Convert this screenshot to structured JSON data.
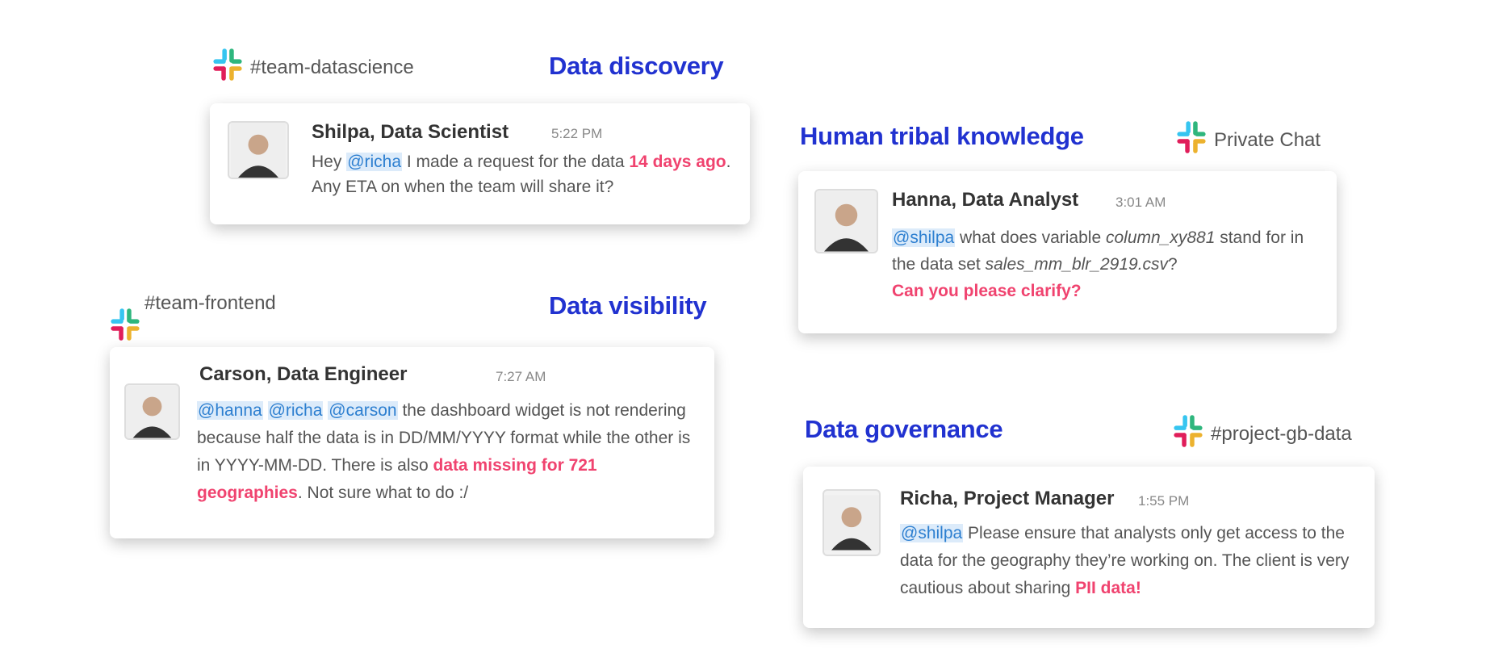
{
  "colors": {
    "topic": "#2132d0",
    "highlight": "#f0436f",
    "mention": "#2d7fd0",
    "mention_bg": "#dcebfa",
    "slack": [
      "#36c5f0",
      "#2eb67d",
      "#e01e5a",
      "#ecb22e"
    ]
  },
  "panels": [
    {
      "topic": "Data discovery",
      "channel": "#team-datascience",
      "channel_icon": "slack-logo-icon",
      "message": {
        "author": "Shilpa, Data Scientist",
        "time": "5:22 PM",
        "segments": [
          {
            "t": "Hey "
          },
          {
            "t": "@richa",
            "k": "mention"
          },
          {
            "t": " I made a request for the data "
          },
          {
            "t": "14 days ago",
            "k": "hl"
          },
          {
            "t": ". Any ETA on when the team will share it?"
          }
        ]
      }
    },
    {
      "topic": "Human tribal knowledge",
      "channel": "Private Chat",
      "channel_icon": "slack-logo-icon",
      "message": {
        "author": "Hanna, Data Analyst",
        "time": "3:01 AM",
        "segments": [
          {
            "t": "@shilpa",
            "k": "mention"
          },
          {
            "t": " what does variable "
          },
          {
            "t": "column_xy881",
            "k": "it"
          },
          {
            "t": " stand for in the data set "
          },
          {
            "t": "sales_mm_blr_2919.csv",
            "k": "it"
          },
          {
            "t": "? "
          },
          {
            "t": "Can you please clarify?",
            "k": "hlblock"
          }
        ]
      }
    },
    {
      "topic": "Data visibility",
      "channel": "#team-frontend",
      "channel_icon": "slack-logo-icon",
      "message": {
        "author": "Carson, Data Engineer",
        "time": "7:27 AM",
        "segments": [
          {
            "t": "@hanna",
            "k": "mention"
          },
          {
            "t": " "
          },
          {
            "t": "@richa",
            "k": "mention"
          },
          {
            "t": " "
          },
          {
            "t": "@carson",
            "k": "mention"
          },
          {
            "t": " the dashboard widget is not rendering because half the data is in DD/MM/YYYY format while the other is in YYYY-MM-DD. There is also "
          },
          {
            "t": "data missing for 721 geographies",
            "k": "hl"
          },
          {
            "t": ". Not sure what to do :/"
          }
        ]
      }
    },
    {
      "topic": "Data governance",
      "channel": "#project-gb-data",
      "channel_icon": "slack-logo-icon",
      "message": {
        "author": "Richa, Project Manager",
        "time": "1:55 PM",
        "segments": [
          {
            "t": "@shilpa",
            "k": "mention"
          },
          {
            "t": " Please ensure that analysts only get access to the data for the geography they’re working on. The client is very cautious about sharing "
          },
          {
            "t": "PII data!",
            "k": "hl"
          }
        ]
      }
    }
  ]
}
